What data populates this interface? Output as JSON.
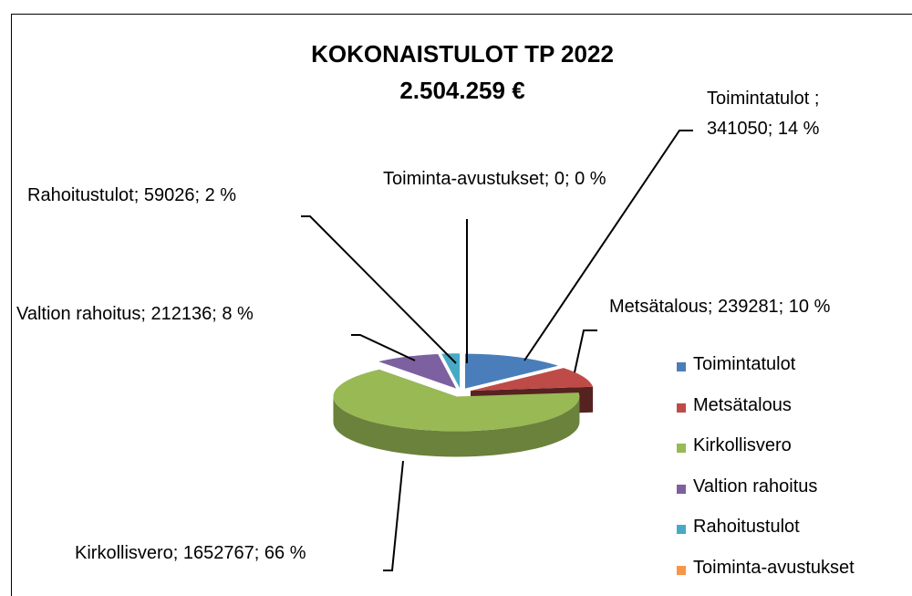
{
  "chart_data": {
    "type": "pie3d",
    "title": "KOKONAISTULOT    TP 2022",
    "subtitle": "2.504.259 €",
    "categories": [
      "Toimintatulot",
      "Metsätalous",
      "Kirkollisvero",
      "Valtion rahoitus",
      "Rahoitustulot",
      "Toiminta-avustukset"
    ],
    "values": [
      341050,
      239281,
      1652767,
      212136,
      59026,
      0
    ],
    "value_labels": [
      "Toimintatulot ; 341050; 14 %",
      "Metsätalous; 239281; 10 %",
      "Kirkollisvero; 1652767; 66 %",
      "Valtion rahoitus; 212136; 8 %",
      "Rahoitustulot; 59026; 2 %",
      "Toiminta-avustukset; 0; 0 %"
    ],
    "colors": [
      "#4a7ebb",
      "#be4b48",
      "#98b954",
      "#7d60a0",
      "#46aac5",
      "#f79646"
    ],
    "legend": "right"
  }
}
